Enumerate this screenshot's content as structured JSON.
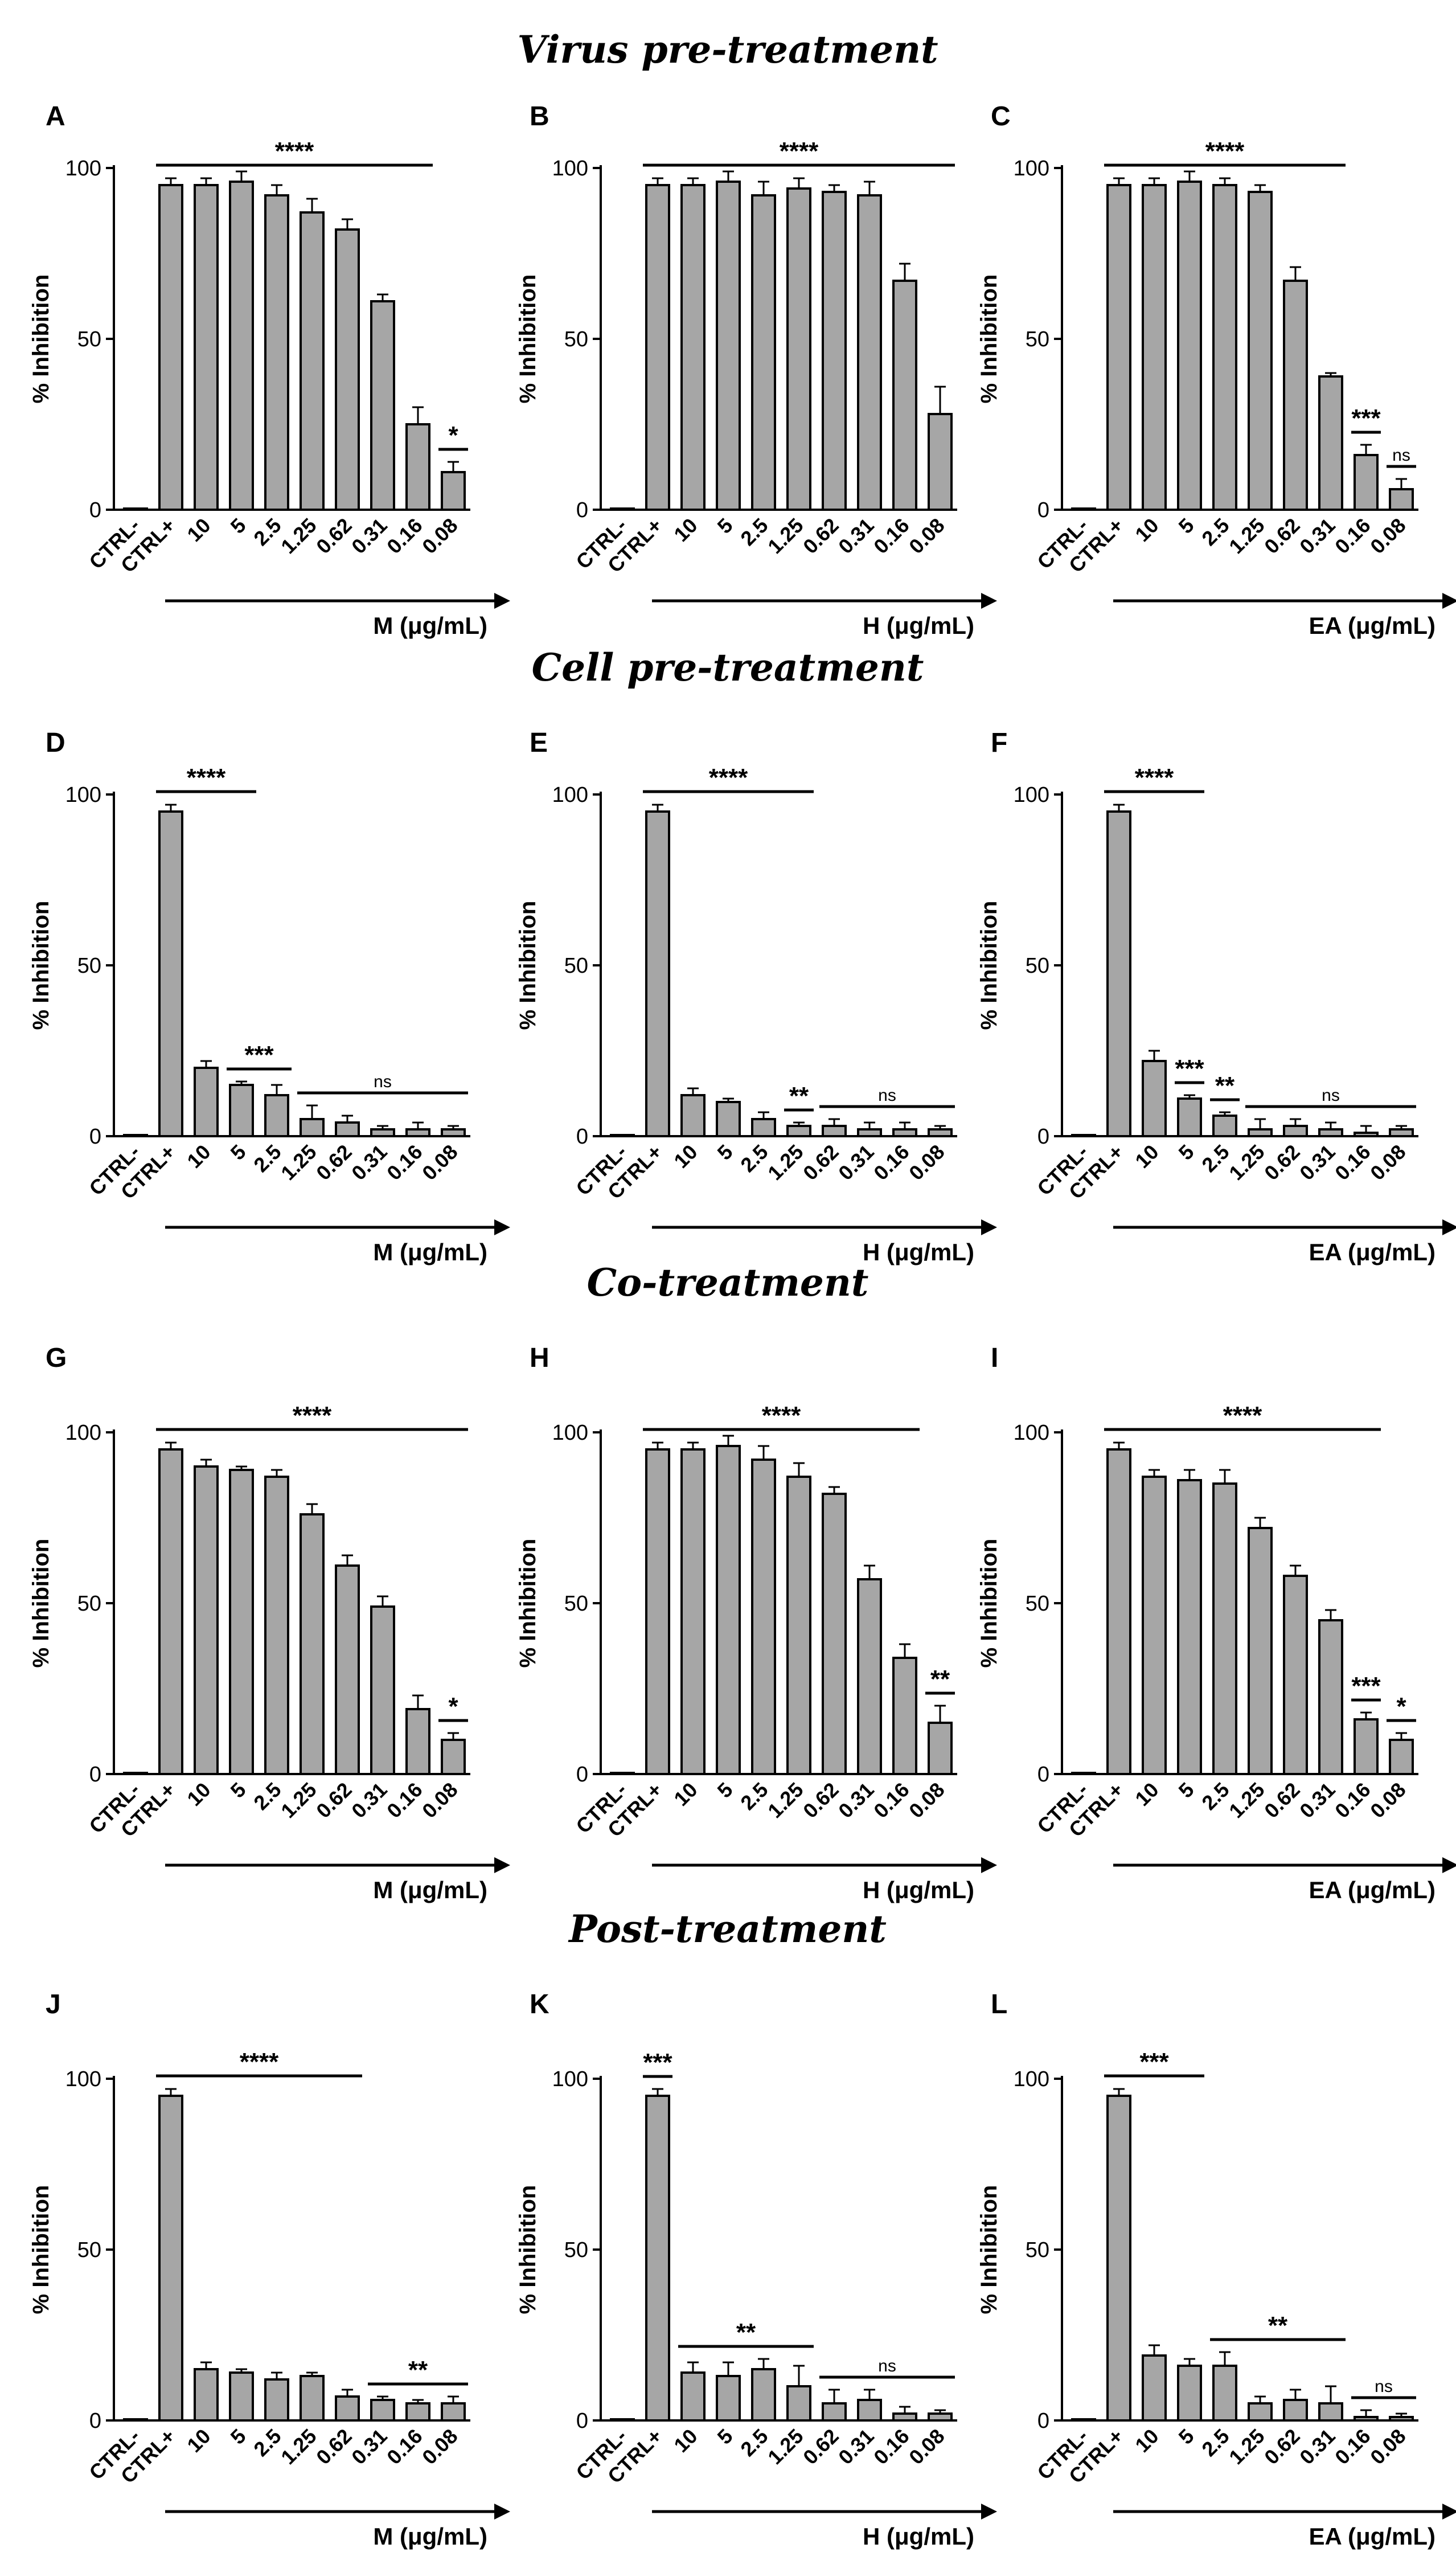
{
  "sections": [
    {
      "title": "Virus pre-treatment"
    },
    {
      "title": "Cell pre-treatment"
    },
    {
      "title": "Co-treatment"
    },
    {
      "title": "Post-treatment"
    }
  ],
  "chart_data": [
    {
      "type": "bar",
      "panel": "A",
      "section": "Virus pre-treatment",
      "ylabel": "% Inhibition",
      "xlabel": "M (μg/mL)",
      "ylim": [
        0,
        100
      ],
      "yticks": [
        "0",
        "50",
        "100"
      ],
      "categories": [
        "CTRL-",
        "CTRL+",
        "10",
        "5",
        "2.5",
        "1.25",
        "0.62",
        "0.31",
        "0.16",
        "0.08"
      ],
      "values": [
        0,
        95,
        95,
        96,
        92,
        87,
        82,
        61,
        25,
        11
      ],
      "errors": [
        0,
        2,
        2,
        3,
        3,
        4,
        3,
        2,
        5,
        3
      ],
      "annotations": [
        {
          "text": "****",
          "from": 1,
          "to": 8
        },
        {
          "text": "*",
          "from": 9,
          "to": 9
        }
      ]
    },
    {
      "type": "bar",
      "panel": "B",
      "section": "Virus pre-treatment",
      "ylabel": "% Inhibition",
      "xlabel": "H (μg/mL)",
      "ylim": [
        0,
        100
      ],
      "yticks": [
        "0",
        "50",
        "100"
      ],
      "categories": [
        "CTRL-",
        "CTRL+",
        "10",
        "5",
        "2.5",
        "1.25",
        "0.62",
        "0.31",
        "0.16",
        "0.08"
      ],
      "values": [
        0,
        95,
        95,
        96,
        92,
        94,
        93,
        92,
        67,
        28
      ],
      "errors": [
        0,
        2,
        2,
        3,
        4,
        3,
        2,
        4,
        5,
        8
      ],
      "annotations": [
        {
          "text": "****",
          "from": 1,
          "to": 9
        }
      ]
    },
    {
      "type": "bar",
      "panel": "C",
      "section": "Virus pre-treatment",
      "ylabel": "% Inhibition",
      "xlabel": "EA (μg/mL)",
      "ylim": [
        0,
        100
      ],
      "yticks": [
        "0",
        "50",
        "100"
      ],
      "categories": [
        "CTRL-",
        "CTRL+",
        "10",
        "5",
        "2.5",
        "1.25",
        "0.62",
        "0.31",
        "0.16",
        "0.08"
      ],
      "values": [
        0,
        95,
        95,
        96,
        95,
        93,
        67,
        39,
        16,
        6
      ],
      "errors": [
        0,
        2,
        2,
        3,
        2,
        2,
        4,
        1,
        3,
        3
      ],
      "annotations": [
        {
          "text": "****",
          "from": 1,
          "to": 7
        },
        {
          "text": "***",
          "from": 8,
          "to": 8
        },
        {
          "text": "ns",
          "from": 9,
          "to": 9
        }
      ]
    },
    {
      "type": "bar",
      "panel": "D",
      "section": "Cell pre-treatment",
      "ylabel": "% Inhibition",
      "xlabel": "M (μg/mL)",
      "ylim": [
        0,
        100
      ],
      "yticks": [
        "0",
        "50",
        "100"
      ],
      "categories": [
        "CTRL-",
        "CTRL+",
        "10",
        "5",
        "2.5",
        "1.25",
        "0.62",
        "0.31",
        "0.16",
        "0.08"
      ],
      "values": [
        0,
        95,
        20,
        15,
        12,
        5,
        4,
        2,
        2,
        2
      ],
      "errors": [
        0,
        2,
        2,
        1,
        3,
        4,
        2,
        1,
        2,
        1
      ],
      "annotations": [
        {
          "text": "****",
          "from": 1,
          "to": 3
        },
        {
          "text": "***",
          "from": 3,
          "to": 4
        },
        {
          "text": "ns",
          "from": 5,
          "to": 9
        }
      ]
    },
    {
      "type": "bar",
      "panel": "E",
      "section": "Cell pre-treatment",
      "ylabel": "% Inhibition",
      "xlabel": "H (μg/mL)",
      "ylim": [
        0,
        100
      ],
      "yticks": [
        "0",
        "50",
        "100"
      ],
      "categories": [
        "CTRL-",
        "CTRL+",
        "10",
        "5",
        "2.5",
        "1.25",
        "0.62",
        "0.31",
        "0.16",
        "0.08"
      ],
      "values": [
        0,
        95,
        12,
        10,
        5,
        3,
        3,
        2,
        2,
        2
      ],
      "errors": [
        0,
        2,
        2,
        1,
        2,
        1,
        2,
        2,
        2,
        1
      ],
      "annotations": [
        {
          "text": "****",
          "from": 1,
          "to": 5
        },
        {
          "text": "**",
          "from": 5,
          "to": 5
        },
        {
          "text": "ns",
          "from": 6,
          "to": 9
        }
      ]
    },
    {
      "type": "bar",
      "panel": "F",
      "section": "Cell pre-treatment",
      "ylabel": "% Inhibition",
      "xlabel": "EA (μg/mL)",
      "ylim": [
        0,
        100
      ],
      "yticks": [
        "0",
        "50",
        "100"
      ],
      "categories": [
        "CTRL-",
        "CTRL+",
        "10",
        "5",
        "2.5",
        "1.25",
        "0.62",
        "0.31",
        "0.16",
        "0.08"
      ],
      "values": [
        0,
        95,
        22,
        11,
        6,
        2,
        3,
        2,
        1,
        2
      ],
      "errors": [
        0,
        2,
        3,
        1,
        1,
        3,
        2,
        2,
        2,
        1
      ],
      "annotations": [
        {
          "text": "****",
          "from": 1,
          "to": 3
        },
        {
          "text": "***",
          "from": 3,
          "to": 3
        },
        {
          "text": "**",
          "from": 4,
          "to": 4
        },
        {
          "text": "ns",
          "from": 5,
          "to": 9
        }
      ]
    },
    {
      "type": "bar",
      "panel": "G",
      "section": "Co-treatment",
      "ylabel": "% Inhibition",
      "xlabel": "M (μg/mL)",
      "ylim": [
        0,
        100
      ],
      "yticks": [
        "0",
        "50",
        "100"
      ],
      "categories": [
        "CTRL-",
        "CTRL+",
        "10",
        "5",
        "2.5",
        "1.25",
        "0.62",
        "0.31",
        "0.16",
        "0.08"
      ],
      "values": [
        0,
        95,
        90,
        89,
        87,
        76,
        61,
        49,
        19,
        10
      ],
      "errors": [
        0,
        2,
        2,
        1,
        2,
        3,
        3,
        3,
        4,
        2
      ],
      "annotations": [
        {
          "text": "****",
          "from": 1,
          "to": 9
        },
        {
          "text": "*",
          "from": 9,
          "to": 9
        }
      ]
    },
    {
      "type": "bar",
      "panel": "H",
      "section": "Co-treatment",
      "ylabel": "% Inhibition",
      "xlabel": "H (μg/mL)",
      "ylim": [
        0,
        100
      ],
      "yticks": [
        "0",
        "50",
        "100"
      ],
      "categories": [
        "CTRL-",
        "CTRL+",
        "10",
        "5",
        "2.5",
        "1.25",
        "0.62",
        "0.31",
        "0.16",
        "0.08"
      ],
      "values": [
        0,
        95,
        95,
        96,
        92,
        87,
        82,
        57,
        34,
        15
      ],
      "errors": [
        0,
        2,
        2,
        3,
        4,
        4,
        2,
        4,
        4,
        5
      ],
      "annotations": [
        {
          "text": "****",
          "from": 1,
          "to": 8
        },
        {
          "text": "**",
          "from": 9,
          "to": 9
        }
      ]
    },
    {
      "type": "bar",
      "panel": "I",
      "section": "Co-treatment",
      "ylabel": "% Inhibition",
      "xlabel": "EA (μg/mL)",
      "ylim": [
        0,
        100
      ],
      "yticks": [
        "0",
        "50",
        "100"
      ],
      "categories": [
        "CTRL-",
        "CTRL+",
        "10",
        "5",
        "2.5",
        "1.25",
        "0.62",
        "0.31",
        "0.16",
        "0.08"
      ],
      "values": [
        0,
        95,
        87,
        86,
        85,
        72,
        58,
        45,
        16,
        10
      ],
      "errors": [
        0,
        2,
        2,
        3,
        4,
        3,
        3,
        3,
        2,
        2
      ],
      "annotations": [
        {
          "text": "****",
          "from": 1,
          "to": 8
        },
        {
          "text": "***",
          "from": 8,
          "to": 8
        },
        {
          "text": "*",
          "from": 9,
          "to": 9
        }
      ]
    },
    {
      "type": "bar",
      "panel": "J",
      "section": "Post-treatment",
      "ylabel": "% Inhibition",
      "xlabel": "M (μg/mL)",
      "ylim": [
        0,
        100
      ],
      "yticks": [
        "0",
        "50",
        "100"
      ],
      "categories": [
        "CTRL-",
        "CTRL+",
        "10",
        "5",
        "2.5",
        "1.25",
        "0.62",
        "0.31",
        "0.16",
        "0.08"
      ],
      "values": [
        0,
        95,
        15,
        14,
        12,
        13,
        7,
        6,
        5,
        5
      ],
      "errors": [
        0,
        2,
        2,
        1,
        2,
        1,
        2,
        1,
        1,
        2
      ],
      "annotations": [
        {
          "text": "****",
          "from": 1,
          "to": 6
        },
        {
          "text": "**",
          "from": 7,
          "to": 9
        }
      ]
    },
    {
      "type": "bar",
      "panel": "K",
      "section": "Post-treatment",
      "ylabel": "% Inhibition",
      "xlabel": "H (μg/mL)",
      "ylim": [
        0,
        100
      ],
      "yticks": [
        "0",
        "50",
        "100"
      ],
      "categories": [
        "CTRL-",
        "CTRL+",
        "10",
        "5",
        "2.5",
        "1.25",
        "0.62",
        "0.31",
        "0.16",
        "0.08"
      ],
      "values": [
        0,
        95,
        14,
        13,
        15,
        10,
        5,
        6,
        2,
        2
      ],
      "errors": [
        0,
        2,
        3,
        4,
        3,
        6,
        4,
        3,
        2,
        1
      ],
      "annotations": [
        {
          "text": "***",
          "from": 1,
          "to": 1
        },
        {
          "text": "**",
          "from": 2,
          "to": 5
        },
        {
          "text": "ns",
          "from": 6,
          "to": 9
        }
      ]
    },
    {
      "type": "bar",
      "panel": "L",
      "section": "Post-treatment",
      "ylabel": "% Inhibition",
      "xlabel": "EA (μg/mL)",
      "ylim": [
        0,
        100
      ],
      "yticks": [
        "0",
        "50",
        "100"
      ],
      "categories": [
        "CTRL-",
        "CTRL+",
        "10",
        "5",
        "2.5",
        "1.25",
        "0.62",
        "0.31",
        "0.16",
        "0.08"
      ],
      "values": [
        0,
        95,
        19,
        16,
        16,
        5,
        6,
        5,
        1,
        1
      ],
      "errors": [
        0,
        2,
        3,
        2,
        4,
        2,
        3,
        5,
        2,
        1
      ],
      "annotations": [
        {
          "text": "***",
          "from": 1,
          "to": 3
        },
        {
          "text": "**",
          "from": 4,
          "to": 7
        },
        {
          "text": "ns",
          "from": 8,
          "to": 9
        }
      ]
    }
  ]
}
